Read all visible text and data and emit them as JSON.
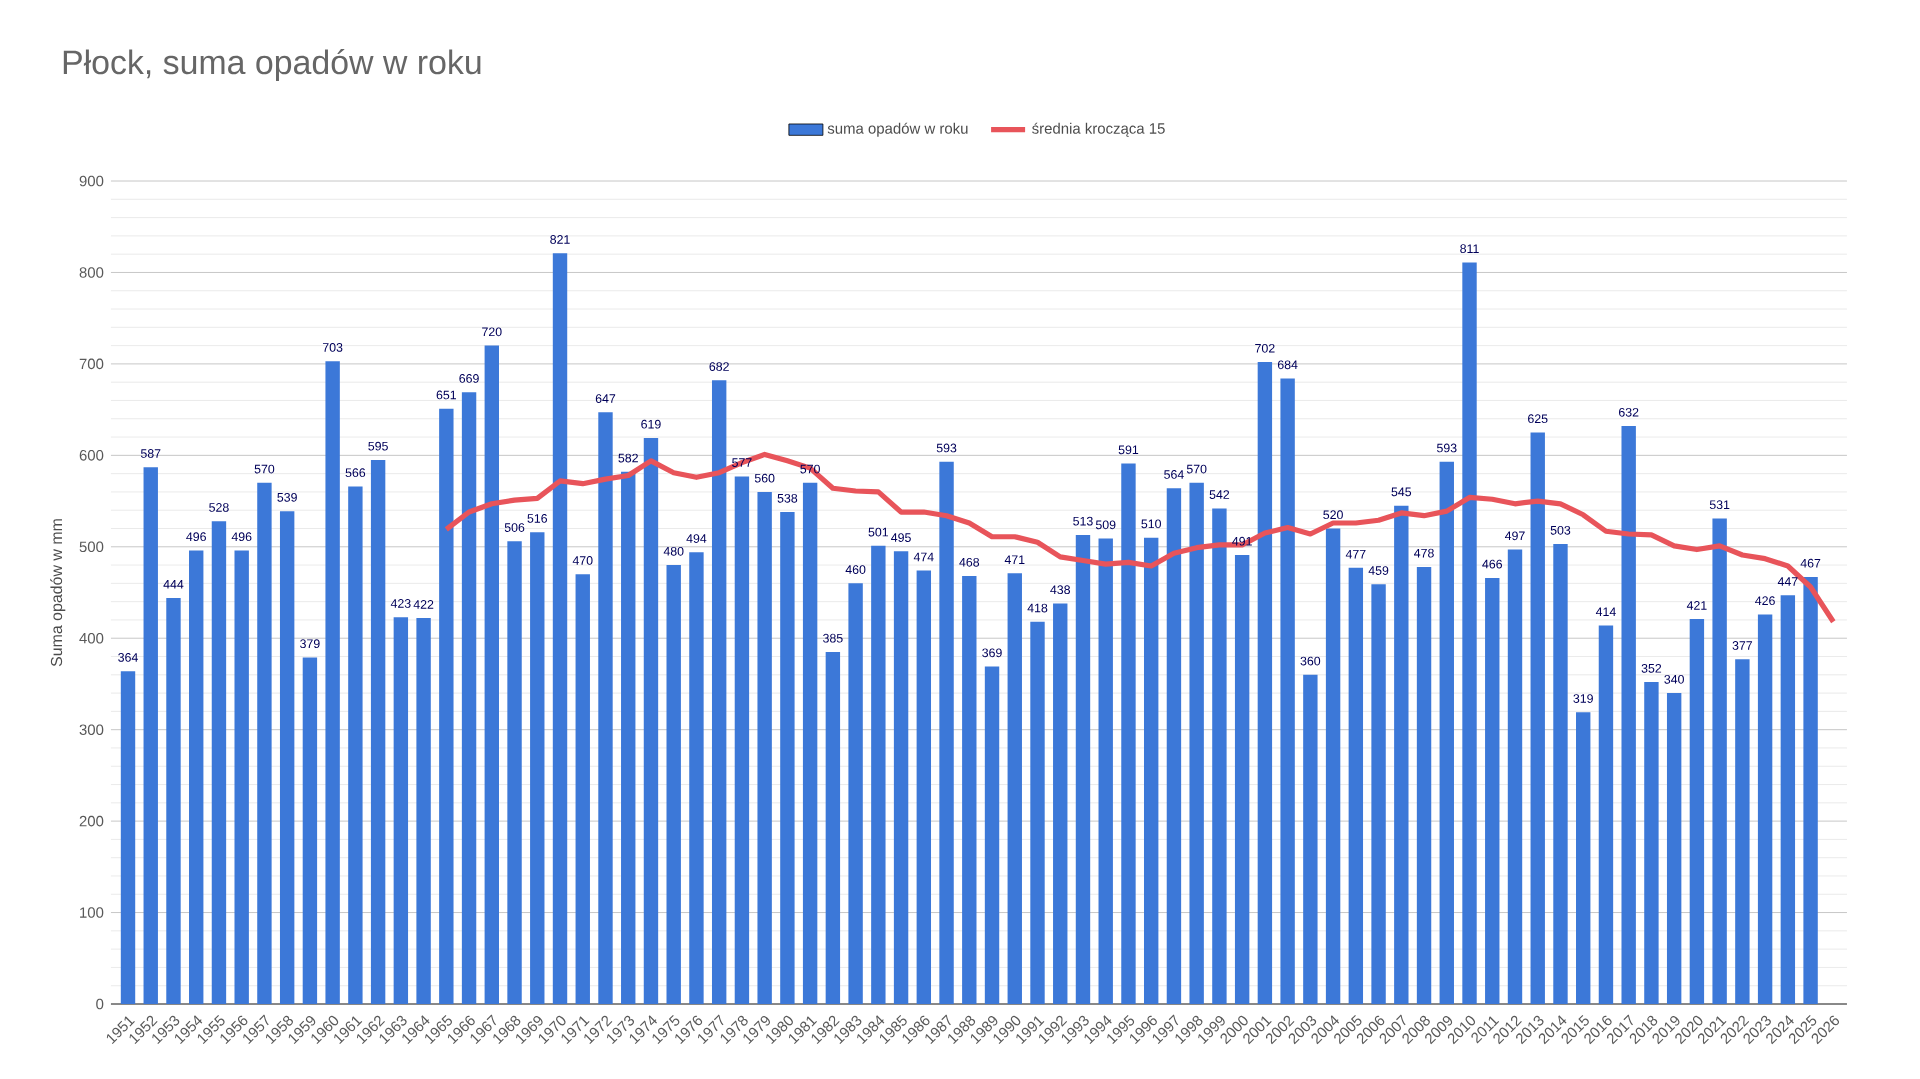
{
  "chart_data": {
    "type": "bar",
    "title": "Płock, suma opadów w roku",
    "ylabel": "Suma opadów w mm",
    "categories": [
      "1951",
      "1952",
      "1953",
      "1954",
      "1955",
      "1956",
      "1957",
      "1958",
      "1959",
      "1960",
      "1961",
      "1962",
      "1963",
      "1964",
      "1965",
      "1966",
      "1967",
      "1968",
      "1969",
      "1970",
      "1971",
      "1972",
      "1973",
      "1974",
      "1975",
      "1976",
      "1977",
      "1978",
      "1979",
      "1980",
      "1981",
      "1982",
      "1983",
      "1984",
      "1985",
      "1986",
      "1987",
      "1988",
      "1989",
      "1990",
      "1991",
      "1992",
      "1993",
      "1994",
      "1995",
      "1996",
      "1997",
      "1998",
      "1999",
      "2000",
      "2001",
      "2002",
      "2003",
      "2004",
      "2005",
      "2006",
      "2007",
      "2008",
      "2009",
      "2010",
      "2011",
      "2012",
      "2013",
      "2014",
      "2015",
      "2016",
      "2017",
      "2018",
      "2019",
      "2020",
      "2021",
      "2022",
      "2023",
      "2024",
      "2025",
      "2026"
    ],
    "series": [
      {
        "name": "suma opadów w roku",
        "color": "#3c78d8",
        "data_labels": true,
        "values": [
          364,
          587,
          444,
          496,
          528,
          496,
          570,
          539,
          379,
          703,
          566,
          595,
          423,
          422,
          651,
          669,
          720,
          506,
          516,
          821,
          470,
          647,
          582,
          619,
          480,
          494,
          682,
          577,
          560,
          538,
          570,
          385,
          460,
          501,
          495,
          474,
          593,
          468,
          369,
          471,
          418,
          438,
          513,
          509,
          591,
          510,
          564,
          570,
          542,
          491,
          702,
          684,
          360,
          520,
          477,
          459,
          545,
          478,
          593,
          811,
          466,
          497,
          625,
          503,
          319,
          414,
          632,
          352,
          340,
          421,
          531,
          377,
          426,
          447,
          467,
          null
        ]
      },
      {
        "name": "średnia krocząca 15",
        "type": "line",
        "color": "#e8545a",
        "values": [
          null,
          null,
          null,
          null,
          null,
          null,
          null,
          null,
          null,
          null,
          null,
          null,
          null,
          null,
          519,
          538,
          547,
          551,
          553,
          572,
          569,
          574,
          578,
          594,
          581,
          576,
          581,
          592,
          601,
          594,
          586,
          564,
          561,
          560,
          538,
          538,
          534,
          526,
          511,
          511,
          505,
          489,
          485,
          481,
          483,
          479,
          493,
          499,
          502,
          502,
          515,
          521,
          514,
          526,
          526,
          529,
          537,
          534,
          539,
          554,
          552,
          547,
          550,
          547,
          535,
          517,
          514,
          513,
          501,
          497,
          501,
          491,
          487,
          479,
          456,
          418
        ]
      }
    ],
    "ylim": [
      0,
      900
    ],
    "yticks": [
      0,
      100,
      200,
      300,
      400,
      500,
      600,
      700,
      800,
      900
    ],
    "grid": "y",
    "legend": "top"
  }
}
